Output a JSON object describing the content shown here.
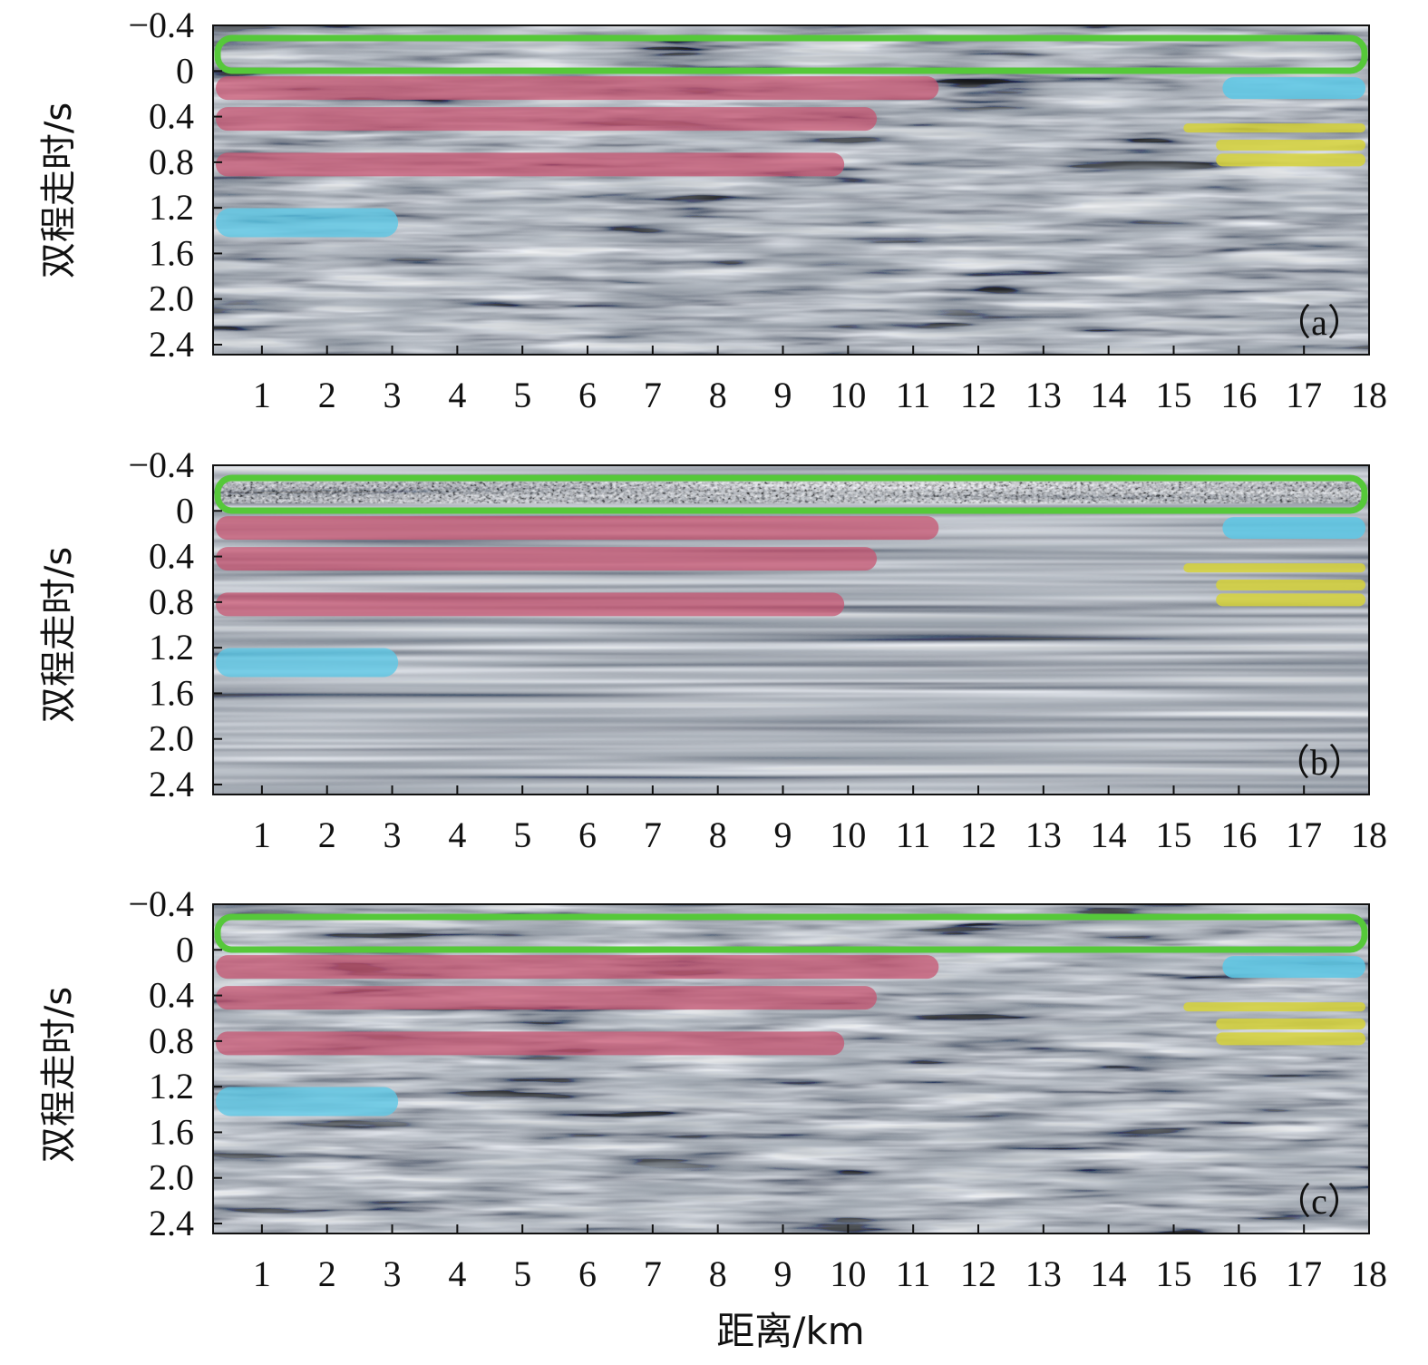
{
  "figure": {
    "x_axis_title": "距离/km",
    "x_ticks": [
      "1",
      "2",
      "3",
      "4",
      "5",
      "6",
      "7",
      "8",
      "9",
      "10",
      "11",
      "12",
      "13",
      "14",
      "15",
      "16",
      "17",
      "18"
    ],
    "y_axis_title": "双程走时/s",
    "y_ticks": [
      "−0.4",
      "0",
      "0.4",
      "0.8",
      "1.2",
      "1.6",
      "2.0",
      "2.4"
    ],
    "colors": {
      "green": "#56c83a",
      "red": "#c8506e",
      "cyan": "#5cc8e6",
      "yellow": "#d6d23a"
    },
    "panels": [
      {
        "label": "（a）",
        "style": "noisy"
      },
      {
        "label": "（b）",
        "style": "smooth"
      },
      {
        "label": "（c）",
        "style": "noisy"
      }
    ]
  }
}
